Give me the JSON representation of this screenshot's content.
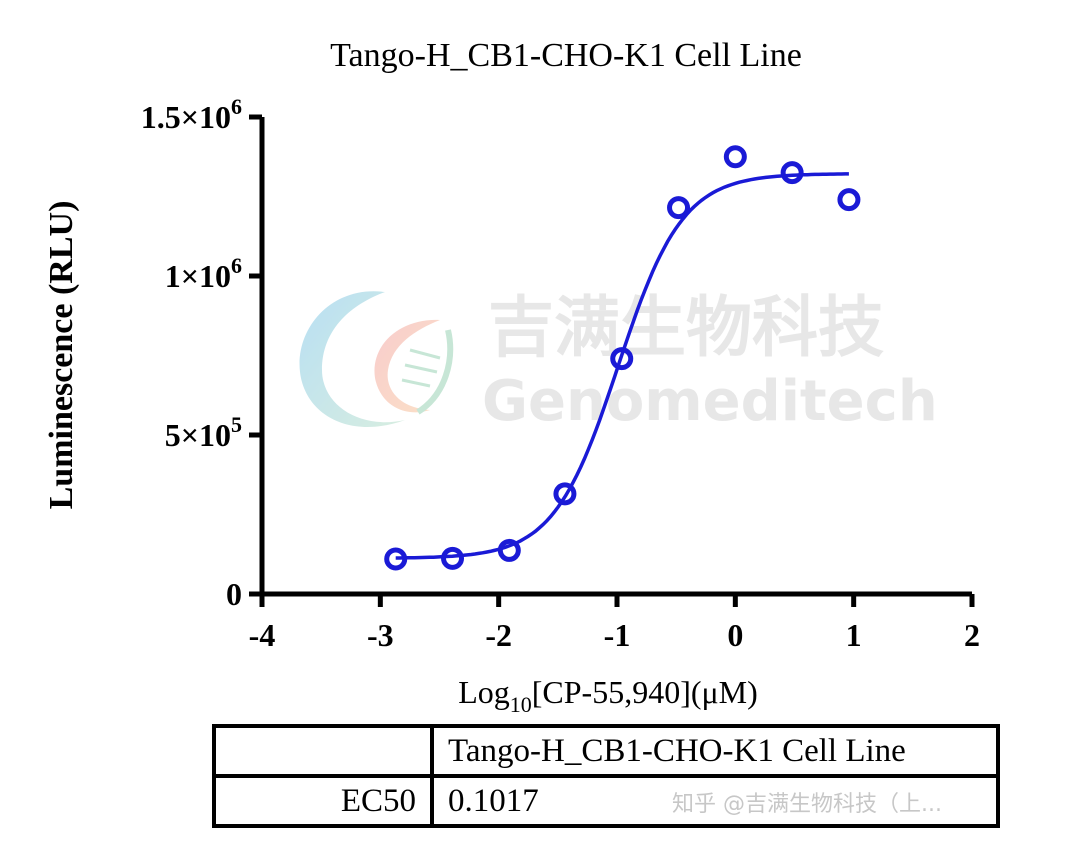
{
  "chart_data": {
    "type": "scatter",
    "title": "Tango-H_CB1-CHO-K1 Cell Line",
    "xlabel": {
      "prefix": "Log",
      "sub": "10",
      "suffix": "[CP-55,940](μM)"
    },
    "ylabel": "Luminescence (RLU)",
    "xlim": [
      -4,
      2
    ],
    "ylim": [
      0,
      1500000
    ],
    "x_ticks": [
      "-4",
      "-3",
      "-2",
      "-1",
      "0",
      "1",
      "2"
    ],
    "y_ticks": [
      {
        "value": 0,
        "base": "0",
        "exp": ""
      },
      {
        "value": 500000,
        "base": "5×10",
        "exp": "5"
      },
      {
        "value": 1000000,
        "base": "1×10",
        "exp": "6"
      },
      {
        "value": 1500000,
        "base": "1.5×10",
        "exp": "6"
      }
    ],
    "series": [
      {
        "x": [
          -2.87,
          -2.39,
          -1.91,
          -1.44,
          -0.96,
          -0.48,
          0.0,
          0.48,
          0.96
        ],
        "y": [
          110000,
          112000,
          137000,
          315000,
          740000,
          1215000,
          1375000,
          1325000,
          1240000
        ]
      }
    ],
    "fit": {
      "bottom": 112000,
      "top": 1322000,
      "logEC50": -0.99,
      "hill": 1.6
    },
    "color": "#1a1ad6",
    "grid": false
  },
  "table": {
    "header": [
      "",
      "Tango-H_CB1-CHO-K1 Cell Line"
    ],
    "rows": [
      [
        "EC50",
        "0.1017"
      ]
    ]
  },
  "watermark": {
    "cn": "吉满生物科技",
    "en": "Genomeditech"
  },
  "credit": "知乎 @吉满生物科技（上..."
}
